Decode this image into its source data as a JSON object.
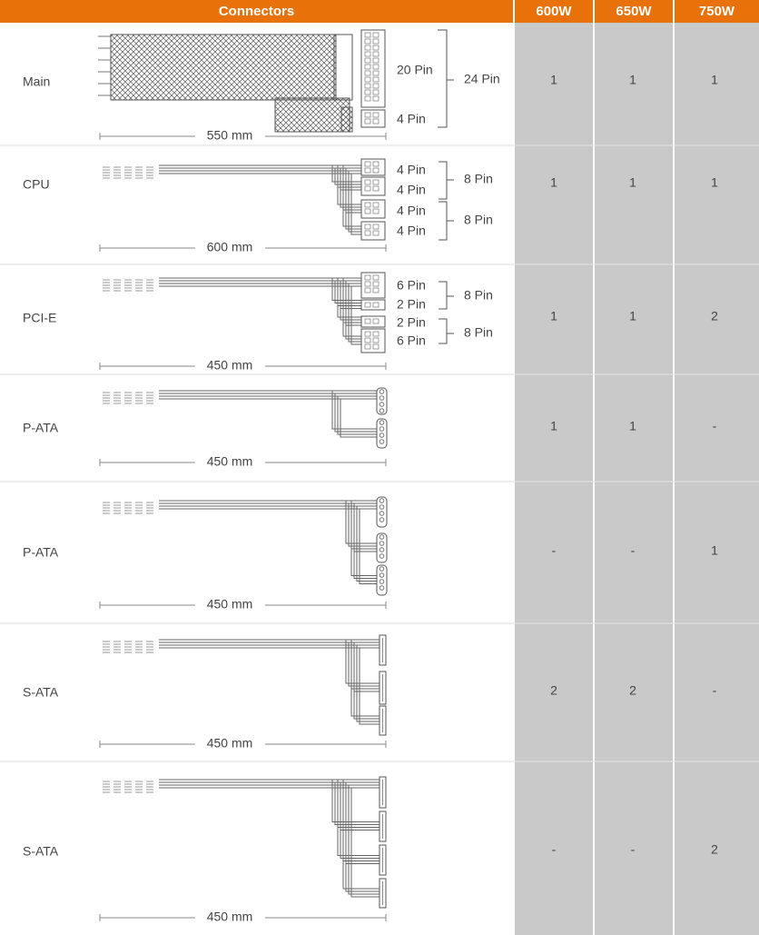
{
  "header": [
    "Connectors",
    "600W",
    "650W",
    "750W"
  ],
  "rows": [
    {
      "name": "Main",
      "length": "550 mm",
      "pins": [
        "20 Pin",
        "4 Pin",
        "24 Pin"
      ],
      "values": [
        1,
        1,
        1
      ]
    },
    {
      "name": "CPU",
      "length": "600 mm",
      "pins": [
        "4 Pin",
        "4 Pin",
        "4 Pin",
        "4 Pin",
        "8 Pin",
        "8 Pin"
      ],
      "values": [
        1,
        1,
        1
      ]
    },
    {
      "name": "PCI-E",
      "length": "450 mm",
      "pins": [
        "6 Pin",
        "2 Pin",
        "2 Pin",
        "6 Pin",
        "8 Pin",
        "8 Pin"
      ],
      "values": [
        1,
        1,
        2
      ]
    },
    {
      "name": "P-ATA",
      "length": "450 mm",
      "pins": [],
      "values": [
        1,
        1,
        "-"
      ]
    },
    {
      "name": "P-ATA",
      "length": "450 mm",
      "pins": [],
      "values": [
        "-",
        "-",
        1
      ]
    },
    {
      "name": "S-ATA",
      "length": "450 mm",
      "pins": [],
      "values": [
        2,
        2,
        "-"
      ]
    },
    {
      "name": "S-ATA",
      "length": "450 mm",
      "pins": [],
      "values": [
        "-",
        "-",
        2
      ]
    }
  ]
}
